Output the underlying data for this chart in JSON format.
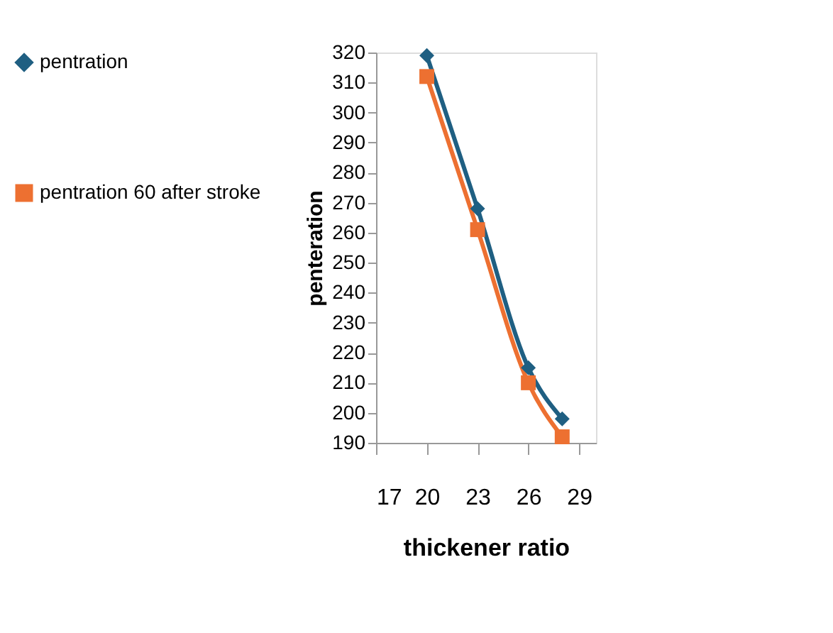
{
  "chart_data": {
    "type": "line",
    "xlabel": "thickener ratio",
    "ylabel": "penteration",
    "x": [
      20,
      23,
      26,
      28
    ],
    "series": [
      {
        "name": "pentration",
        "color": "#1f5f82",
        "marker": "diamond",
        "values": [
          319,
          268,
          215,
          198
        ]
      },
      {
        "name": "pentration 60 after stroke",
        "color": "#ed7031",
        "marker": "square",
        "values": [
          312,
          261,
          210,
          192
        ]
      }
    ],
    "xlim": [
      17,
      30
    ],
    "xticks": [
      17,
      20,
      23,
      26,
      29
    ],
    "ylim": [
      190,
      320
    ],
    "yticks": [
      190,
      200,
      210,
      220,
      230,
      240,
      250,
      260,
      270,
      280,
      290,
      300,
      310,
      320
    ],
    "grid": false,
    "legend": "left",
    "line_style": "solid"
  }
}
